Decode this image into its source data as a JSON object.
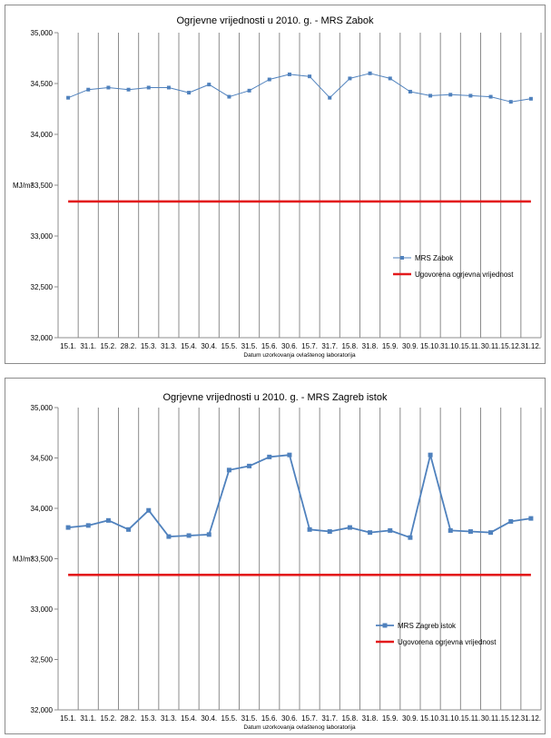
{
  "chart_data": [
    {
      "type": "line",
      "title": "Ogrjevne vrijednosti u 2010. g. - MRS Zabok",
      "xlabel": "Datum uzorkovanja ovlaštenog laboratorija",
      "ylabel": "MJ/m³",
      "ylim": [
        32000,
        35000
      ],
      "yticks": [
        32000,
        32500,
        33000,
        33500,
        34000,
        34500,
        35000
      ],
      "ytick_labels": [
        "32,000",
        "32,500",
        "33,000",
        "33,500",
        "34,000",
        "34,500",
        "35,000"
      ],
      "grid": "vertical",
      "legend_position": "right",
      "categories": [
        "15.1.",
        "31.1.",
        "15.2.",
        "28.2.",
        "15.3.",
        "31.3.",
        "15.4.",
        "30.4.",
        "15.5.",
        "31.5.",
        "15.6.",
        "30.6.",
        "15.7.",
        "31.7.",
        "15.8.",
        "31.8.",
        "15.9.",
        "30.9.",
        "15.10.",
        "31.10.",
        "15.11.",
        "30.11.",
        "15.12.",
        "31.12."
      ],
      "series": [
        {
          "name": "MRS Zabok",
          "color": "#4f81bd",
          "style": "thin-line-markers",
          "values": [
            34360,
            34440,
            34460,
            34440,
            34460,
            34460,
            34410,
            34490,
            34370,
            34430,
            34540,
            34590,
            34570,
            34360,
            34550,
            34600,
            34550,
            34420,
            34380,
            34390,
            34380,
            34370,
            34320,
            34350
          ]
        },
        {
          "name": "Ugovorena ogrjevna vrijednost",
          "color": "#e31a1c",
          "style": "thick-line",
          "values": [
            33340,
            33340,
            33340,
            33340,
            33340,
            33340,
            33340,
            33340,
            33340,
            33340,
            33340,
            33340,
            33340,
            33340,
            33340,
            33340,
            33340,
            33340,
            33340,
            33340,
            33340,
            33340,
            33340,
            33340
          ]
        }
      ]
    },
    {
      "type": "line",
      "title": "Ogrjevne vrijednosti u 2010. g. - MRS Zagreb istok",
      "xlabel": "Datum uzorkovanja ovlaštenog laboratorija",
      "ylabel": "MJ/m³",
      "ylim": [
        32000,
        35000
      ],
      "yticks": [
        32000,
        32500,
        33000,
        33500,
        34000,
        34500,
        35000
      ],
      "ytick_labels": [
        "32,000",
        "32,500",
        "33,000",
        "33,500",
        "34,000",
        "34,500",
        "35,000"
      ],
      "grid": "vertical",
      "legend_position": "right",
      "categories": [
        "15.1.",
        "31.1.",
        "15.2.",
        "28.2.",
        "15.3.",
        "31.3.",
        "15.4.",
        "30.4.",
        "15.5.",
        "31.5.",
        "15.6.",
        "30.6.",
        "15.7.",
        "31.7.",
        "15.8.",
        "31.8.",
        "15.9.",
        "30.9.",
        "15.10.",
        "31.10.",
        "15.11.",
        "30.11.",
        "15.12.",
        "31.12."
      ],
      "series": [
        {
          "name": "MRS Zagreb istok",
          "color": "#4f81bd",
          "style": "thick-line-markers",
          "values": [
            33810,
            33830,
            33880,
            33790,
            33980,
            33720,
            33730,
            33740,
            34380,
            34420,
            34510,
            34530,
            33790,
            33770,
            33810,
            33760,
            33780,
            33710,
            34530,
            33780,
            33770,
            33760,
            33870,
            33900
          ]
        },
        {
          "name": "Ugovorena ogrjevna vrijednost",
          "color": "#e31a1c",
          "style": "thick-line",
          "values": [
            33340,
            33340,
            33340,
            33340,
            33340,
            33340,
            33340,
            33340,
            33340,
            33340,
            33340,
            33340,
            33340,
            33340,
            33340,
            33340,
            33340,
            33340,
            33340,
            33340,
            33340,
            33340,
            33340,
            33340
          ]
        }
      ]
    }
  ]
}
